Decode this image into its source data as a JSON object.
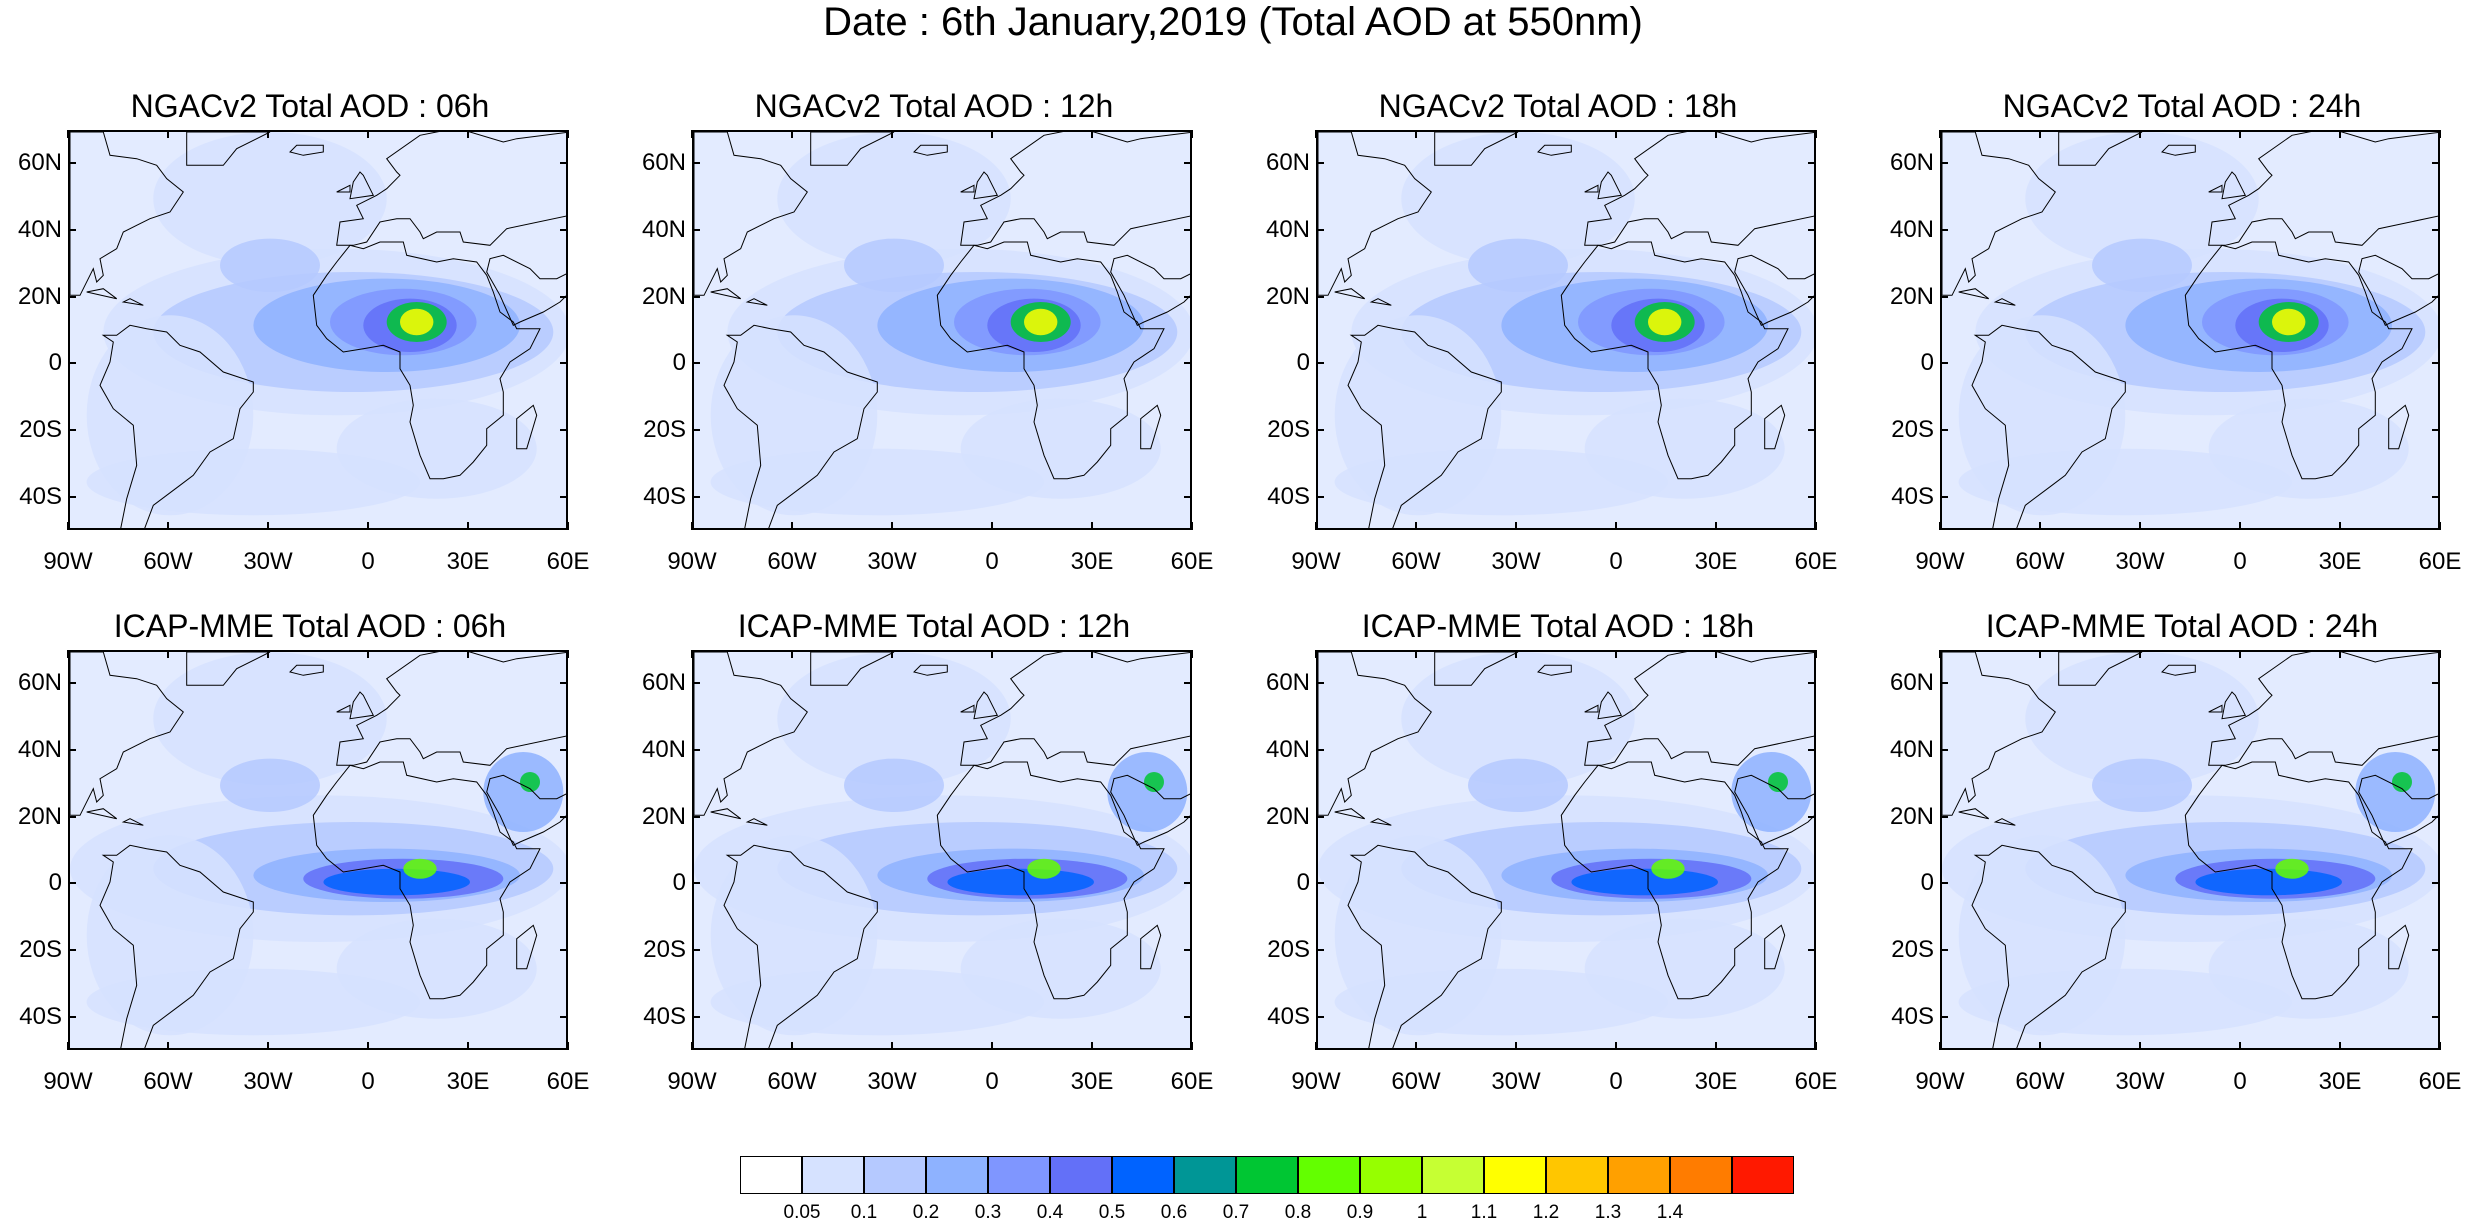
{
  "title": "Date : 6th January,2019 (Total AOD at 550nm)",
  "panels": [
    {
      "title": "NGACv2 Total AOD : 06h",
      "model": "NGACv2"
    },
    {
      "title": "NGACv2 Total AOD : 12h",
      "model": "NGACv2"
    },
    {
      "title": "NGACv2 Total AOD : 18h",
      "model": "NGACv2"
    },
    {
      "title": "NGACv2 Total AOD : 24h",
      "model": "NGACv2"
    },
    {
      "title": "ICAP-MME Total AOD : 06h",
      "model": "ICAP-MME"
    },
    {
      "title": "ICAP-MME Total AOD : 12h",
      "model": "ICAP-MME"
    },
    {
      "title": "ICAP-MME Total AOD : 18h",
      "model": "ICAP-MME"
    },
    {
      "title": "ICAP-MME Total AOD : 24h",
      "model": "ICAP-MME"
    }
  ],
  "lat_labels": [
    "60N",
    "40N",
    "20N",
    "0",
    "20S",
    "40S"
  ],
  "lon_labels": [
    "90W",
    "60W",
    "30W",
    "0",
    "30E",
    "60E"
  ],
  "colorbar": {
    "colors": [
      "#ffffff",
      "#d6e2ff",
      "#b5c9ff",
      "#8eb2ff",
      "#7f96ff",
      "#6370f8",
      "#0063ff",
      "#009696",
      "#00c633",
      "#63ff00",
      "#96ff00",
      "#c6ff33",
      "#ffff00",
      "#ffc600",
      "#ffa000",
      "#ff7c00",
      "#ff1900"
    ],
    "labels": [
      "0.05",
      "0.1",
      "0.2",
      "0.3",
      "0.4",
      "0.5",
      "0.6",
      "0.7",
      "0.8",
      "0.9",
      "1",
      "1.1",
      "1.2",
      "1.3",
      "1.4"
    ]
  }
}
